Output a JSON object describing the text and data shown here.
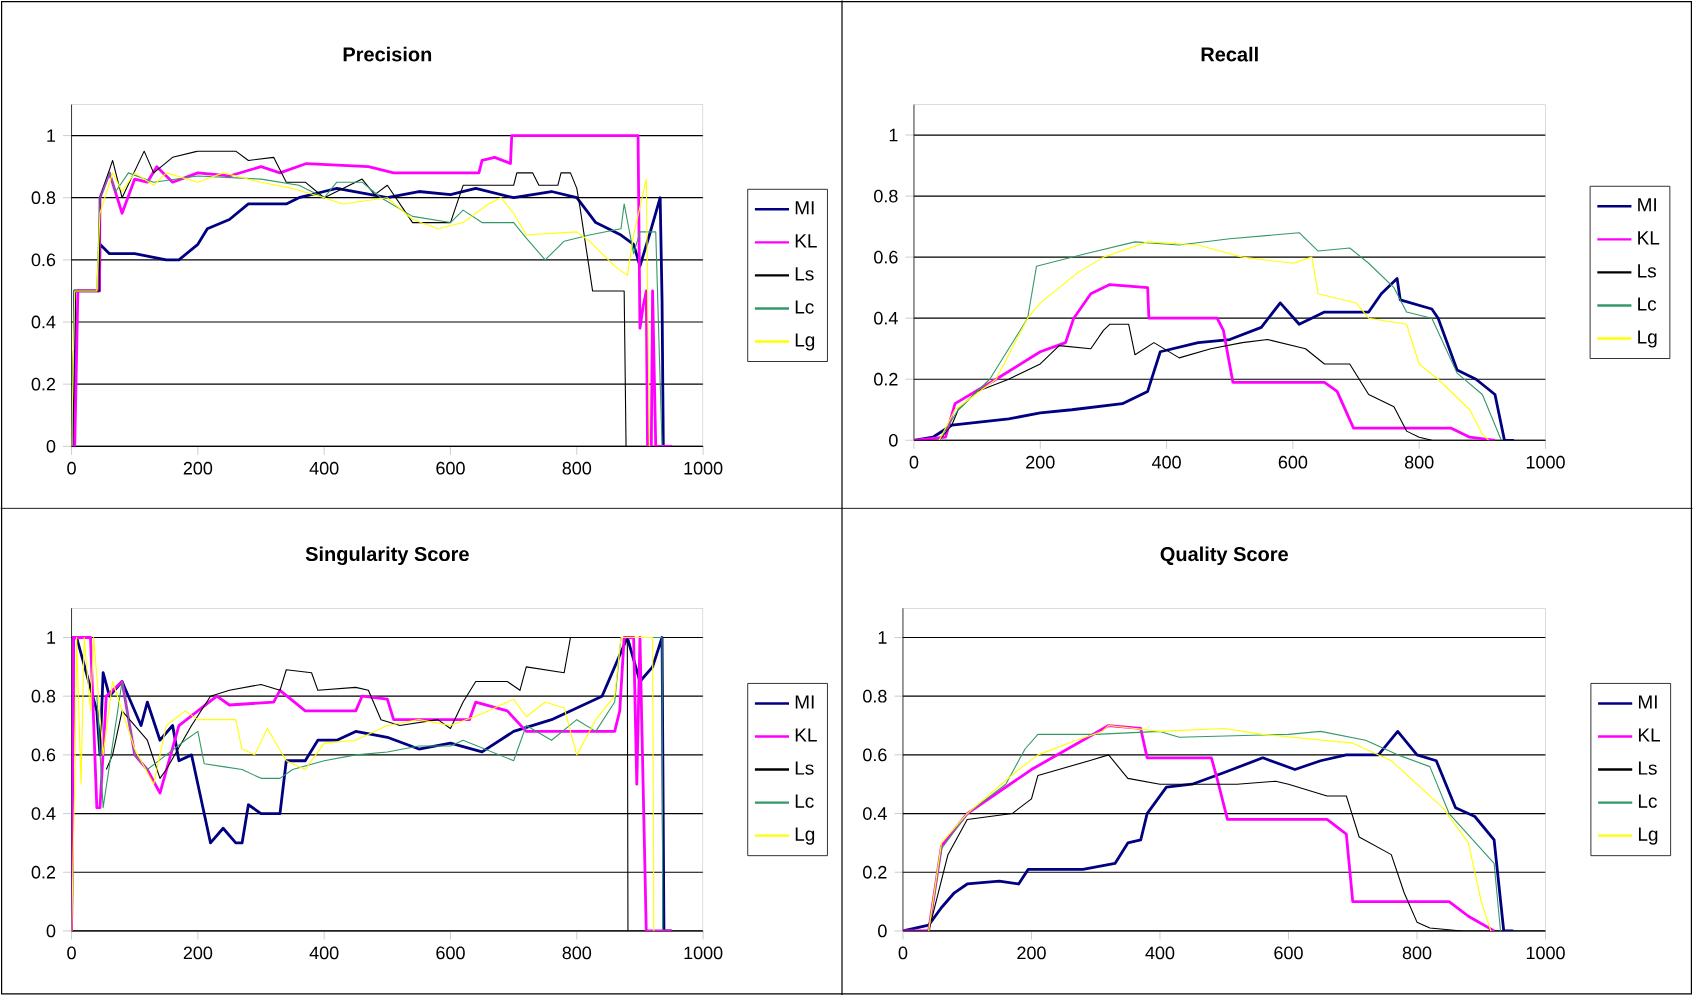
{
  "chart_data": [
    {
      "type": "line",
      "title": "Precision",
      "xlim": [
        0,
        1000
      ],
      "ylim": [
        0,
        1.1
      ],
      "xticks": [
        0,
        200,
        400,
        600,
        800,
        1000
      ],
      "yticks": [
        0,
        0.2,
        0.4,
        0.6,
        0.8,
        1
      ],
      "grid": "y",
      "legend": "right",
      "marker": "none",
      "line_style": "solid",
      "series": [
        {
          "name": "MI",
          "color": "#000080",
          "x": [
            0,
            4,
            5,
            44,
            45,
            60,
            100,
            150,
            170,
            200,
            215,
            250,
            280,
            340,
            360,
            400,
            420,
            500,
            550,
            600,
            640,
            700,
            760,
            800,
            830,
            850,
            870,
            890,
            900,
            915,
            932,
            935,
            937,
            950
          ],
          "values": [
            0,
            0,
            0.5,
            0.5,
            0.65,
            0.62,
            0.62,
            0.6,
            0.6,
            0.65,
            0.7,
            0.73,
            0.78,
            0.78,
            0.8,
            0.82,
            0.83,
            0.8,
            0.82,
            0.81,
            0.83,
            0.8,
            0.82,
            0.8,
            0.72,
            0.7,
            0.68,
            0.65,
            0.58,
            0.68,
            0.8,
            0.47,
            0,
            0
          ]
        },
        {
          "name": "KL",
          "color": "#ff00ff",
          "x": [
            0,
            5,
            10,
            44,
            45,
            60,
            80,
            100,
            120,
            135,
            160,
            200,
            250,
            300,
            330,
            372,
            470,
            510,
            645,
            650,
            670,
            695,
            697,
            897,
            900,
            905,
            910,
            912,
            918,
            920,
            925,
            950
          ],
          "values": [
            0,
            0,
            0.5,
            0.5,
            0.8,
            0.88,
            0.75,
            0.86,
            0.85,
            0.9,
            0.85,
            0.88,
            0.87,
            0.9,
            0.88,
            0.91,
            0.9,
            0.88,
            0.88,
            0.92,
            0.93,
            0.91,
            1,
            1,
            0.38,
            0.45,
            0.5,
            0,
            0,
            0.5,
            0,
            0
          ]
        },
        {
          "name": "Ls",
          "color": "#000000",
          "x": [
            0,
            5,
            44,
            45,
            65,
            80,
            115,
            130,
            160,
            200,
            260,
            280,
            320,
            340,
            370,
            400,
            420,
            460,
            480,
            500,
            540,
            600,
            620,
            700,
            705,
            730,
            740,
            770,
            775,
            790,
            800,
            805,
            825,
            875,
            878
          ],
          "values": [
            0,
            0.5,
            0.5,
            0.8,
            0.92,
            0.8,
            0.95,
            0.88,
            0.93,
            0.95,
            0.95,
            0.92,
            0.93,
            0.85,
            0.85,
            0.8,
            0.82,
            0.86,
            0.81,
            0.84,
            0.72,
            0.72,
            0.84,
            0.84,
            0.88,
            0.88,
            0.84,
            0.84,
            0.88,
            0.88,
            0.83,
            0.77,
            0.5,
            0.5,
            0
          ]
        },
        {
          "name": "Lc",
          "color": "#339966",
          "x": [
            0,
            5,
            40,
            45,
            60,
            70,
            90,
            130,
            200,
            300,
            360,
            400,
            420,
            460,
            490,
            540,
            600,
            620,
            650,
            700,
            720,
            750,
            780,
            820,
            870,
            875,
            890,
            900,
            925,
            935
          ],
          "values": [
            0,
            0.5,
            0.5,
            0.8,
            0.88,
            0.82,
            0.88,
            0.85,
            0.87,
            0.86,
            0.84,
            0.8,
            0.85,
            0.85,
            0.8,
            0.74,
            0.72,
            0.76,
            0.72,
            0.72,
            0.67,
            0.6,
            0.66,
            0.68,
            0.7,
            0.78,
            0.62,
            0.69,
            0.69,
            0
          ]
        },
        {
          "name": "Lg",
          "color": "#ffff00",
          "x": [
            0,
            5,
            40,
            45,
            65,
            80,
            100,
            130,
            150,
            200,
            240,
            300,
            350,
            400,
            430,
            500,
            540,
            580,
            620,
            660,
            680,
            700,
            720,
            800,
            820,
            860,
            880,
            890,
            910,
            915
          ],
          "values": [
            0,
            0.5,
            0.5,
            0.75,
            0.88,
            0.82,
            0.88,
            0.84,
            0.88,
            0.85,
            0.88,
            0.85,
            0.83,
            0.8,
            0.78,
            0.8,
            0.73,
            0.7,
            0.72,
            0.78,
            0.8,
            0.75,
            0.68,
            0.69,
            0.66,
            0.58,
            0.55,
            0.68,
            0.86,
            0
          ]
        }
      ]
    },
    {
      "type": "line",
      "title": "Recall",
      "xlim": [
        0,
        1000
      ],
      "ylim": [
        0,
        1.1
      ],
      "xticks": [
        0,
        200,
        400,
        600,
        800,
        1000
      ],
      "yticks": [
        0,
        0.2,
        0.4,
        0.6,
        0.8,
        1
      ],
      "grid": "y",
      "legend": "right",
      "marker": "none",
      "line_style": "solid",
      "series": [
        {
          "name": "MI",
          "color": "#000080",
          "x": [
            0,
            30,
            60,
            150,
            200,
            250,
            330,
            370,
            390,
            450,
            500,
            550,
            580,
            610,
            650,
            720,
            740,
            765,
            770,
            820,
            830,
            860,
            890,
            920,
            935,
            950
          ],
          "values": [
            0,
            0.01,
            0.05,
            0.07,
            0.09,
            0.1,
            0.12,
            0.16,
            0.29,
            0.32,
            0.33,
            0.37,
            0.45,
            0.38,
            0.42,
            0.42,
            0.48,
            0.53,
            0.46,
            0.43,
            0.4,
            0.23,
            0.2,
            0.15,
            0,
            0
          ]
        },
        {
          "name": "KL",
          "color": "#ff00ff",
          "x": [
            0,
            50,
            65,
            130,
            200,
            240,
            253,
            280,
            310,
            370,
            372,
            480,
            490,
            505,
            650,
            670,
            696,
            850,
            880,
            920
          ],
          "values": [
            0,
            0.01,
            0.12,
            0.2,
            0.29,
            0.32,
            0.4,
            0.48,
            0.51,
            0.5,
            0.4,
            0.4,
            0.36,
            0.19,
            0.19,
            0.16,
            0.04,
            0.04,
            0.01,
            0
          ]
        },
        {
          "name": "Ls",
          "color": "#000000",
          "x": [
            0,
            40,
            60,
            70,
            100,
            150,
            200,
            230,
            280,
            300,
            310,
            340,
            350,
            380,
            420,
            470,
            520,
            560,
            620,
            650,
            690,
            720,
            760,
            780,
            800,
            820
          ],
          "values": [
            0,
            0,
            0.05,
            0.1,
            0.16,
            0.2,
            0.25,
            0.31,
            0.3,
            0.36,
            0.38,
            0.38,
            0.28,
            0.32,
            0.27,
            0.3,
            0.32,
            0.33,
            0.3,
            0.25,
            0.25,
            0.15,
            0.11,
            0.03,
            0.01,
            0
          ]
        },
        {
          "name": "Lc",
          "color": "#339966",
          "x": [
            40,
            70,
            120,
            150,
            180,
            194,
            270,
            350,
            420,
            500,
            610,
            640,
            690,
            720,
            760,
            780,
            820,
            860,
            900,
            930
          ],
          "values": [
            0,
            0.1,
            0.2,
            0.3,
            0.4,
            0.57,
            0.61,
            0.65,
            0.64,
            0.66,
            0.68,
            0.62,
            0.63,
            0.58,
            0.5,
            0.42,
            0.4,
            0.22,
            0.15,
            0
          ]
        },
        {
          "name": "Lg",
          "color": "#ffff00",
          "x": [
            40,
            65,
            130,
            180,
            200,
            260,
            300,
            370,
            450,
            520,
            600,
            630,
            640,
            700,
            720,
            780,
            800,
            830,
            880,
            900,
            910
          ],
          "values": [
            0,
            0.1,
            0.2,
            0.4,
            0.45,
            0.55,
            0.6,
            0.65,
            0.64,
            0.6,
            0.58,
            0.6,
            0.48,
            0.45,
            0.4,
            0.38,
            0.25,
            0.2,
            0.1,
            0.02,
            0
          ]
        }
      ]
    },
    {
      "type": "line",
      "title": "Singularity Score",
      "xlim": [
        0,
        1000
      ],
      "ylim": [
        0,
        1.1
      ],
      "xticks": [
        0,
        200,
        400,
        600,
        800,
        1000
      ],
      "yticks": [
        0,
        0.2,
        0.4,
        0.6,
        0.8,
        1
      ],
      "grid": "y",
      "legend": "right",
      "marker": "none",
      "line_style": "solid",
      "series": [
        {
          "name": "MI",
          "color": "#000080",
          "x": [
            0,
            3,
            8,
            40,
            45,
            50,
            60,
            80,
            90,
            110,
            120,
            140,
            160,
            170,
            190,
            200,
            210,
            220,
            240,
            260,
            270,
            280,
            300,
            330,
            340,
            370,
            390,
            420,
            450,
            500,
            550,
            600,
            650,
            700,
            760,
            840,
            860,
            880,
            900,
            920,
            935,
            938,
            950
          ],
          "values": [
            0,
            1,
            1,
            0.75,
            0.6,
            0.88,
            0.8,
            0.85,
            0.8,
            0.7,
            0.78,
            0.65,
            0.7,
            0.58,
            0.6,
            0.5,
            0.4,
            0.3,
            0.35,
            0.3,
            0.3,
            0.43,
            0.4,
            0.4,
            0.58,
            0.58,
            0.65,
            0.65,
            0.68,
            0.66,
            0.62,
            0.64,
            0.61,
            0.68,
            0.72,
            0.8,
            0.9,
            1,
            0.85,
            0.9,
            1,
            0,
            0
          ]
        },
        {
          "name": "KL",
          "color": "#ff00ff",
          "x": [
            0,
            3,
            30,
            40,
            45,
            55,
            80,
            100,
            120,
            140,
            170,
            230,
            250,
            320,
            330,
            370,
            450,
            460,
            500,
            510,
            630,
            640,
            690,
            720,
            860,
            868,
            875,
            890,
            895,
            900,
            910,
            950
          ],
          "values": [
            0,
            1,
            1,
            0.42,
            0.42,
            0.8,
            0.85,
            0.6,
            0.55,
            0.47,
            0.7,
            0.8,
            0.77,
            0.78,
            0.82,
            0.75,
            0.75,
            0.8,
            0.79,
            0.72,
            0.72,
            0.78,
            0.75,
            0.68,
            0.68,
            0.75,
            1,
            1,
            0.5,
            1,
            0,
            0
          ]
        },
        {
          "name": "Ls",
          "color": "#000000",
          "x": [
            55,
            65,
            80,
            100,
            120,
            140,
            150,
            190,
            220,
            250,
            300,
            330,
            340,
            380,
            390,
            450,
            470,
            490,
            520,
            580,
            600,
            620,
            640,
            690,
            710,
            720,
            780,
            790,
            880,
            881
          ],
          "values": [
            0.55,
            0.6,
            0.75,
            0.7,
            0.65,
            0.52,
            0.55,
            0.7,
            0.8,
            0.82,
            0.84,
            0.82,
            0.89,
            0.88,
            0.82,
            0.83,
            0.82,
            0.72,
            0.7,
            0.72,
            0.69,
            0.78,
            0.85,
            0.85,
            0.82,
            0.9,
            0.88,
            1,
            1,
            0
          ]
        },
        {
          "name": "Lc",
          "color": "#339966",
          "x": [
            40,
            50,
            80,
            100,
            120,
            150,
            180,
            200,
            210,
            240,
            270,
            300,
            330,
            350,
            400,
            450,
            500,
            550,
            600,
            620,
            700,
            720,
            760,
            800,
            830,
            860,
            870,
            935,
            936
          ],
          "values": [
            0.8,
            0.42,
            0.85,
            0.6,
            0.55,
            0.6,
            0.65,
            0.68,
            0.57,
            0.56,
            0.55,
            0.52,
            0.52,
            0.55,
            0.58,
            0.6,
            0.61,
            0.63,
            0.63,
            0.65,
            0.58,
            0.7,
            0.65,
            0.72,
            0.68,
            0.78,
            1,
            1,
            0
          ]
        },
        {
          "name": "Lg",
          "color": "#ffff00",
          "x": [
            0,
            5,
            8,
            15,
            20,
            30,
            35,
            50,
            65,
            100,
            130,
            150,
            180,
            200,
            260,
            270,
            290,
            310,
            340,
            370,
            400,
            450,
            500,
            550,
            600,
            650,
            700,
            720,
            750,
            780,
            800,
            830,
            860,
            870,
            920,
            922
          ],
          "values": [
            0,
            0.5,
            1,
            0.5,
            1,
            0.75,
            1,
            0.6,
            0.85,
            0.62,
            0.5,
            0.7,
            0.75,
            0.72,
            0.72,
            0.62,
            0.6,
            0.69,
            0.58,
            0.55,
            0.64,
            0.65,
            0.7,
            0.72,
            0.7,
            0.74,
            0.79,
            0.73,
            0.78,
            0.76,
            0.6,
            0.72,
            0.8,
            1,
            1,
            0
          ]
        }
      ]
    },
    {
      "type": "line",
      "title": "Quality Score",
      "xlim": [
        0,
        1000
      ],
      "ylim": [
        0,
        1.1
      ],
      "xticks": [
        0,
        200,
        400,
        600,
        800,
        1000
      ],
      "yticks": [
        0,
        0.2,
        0.4,
        0.6,
        0.8,
        1
      ],
      "grid": "y",
      "legend": "right",
      "marker": "none",
      "line_style": "solid",
      "series": [
        {
          "name": "MI",
          "color": "#000080",
          "x": [
            0,
            40,
            60,
            80,
            100,
            150,
            180,
            195,
            280,
            330,
            350,
            370,
            380,
            410,
            450,
            500,
            560,
            610,
            650,
            690,
            740,
            770,
            800,
            830,
            860,
            890,
            920,
            935,
            950
          ],
          "values": [
            0,
            0.02,
            0.08,
            0.13,
            0.16,
            0.17,
            0.16,
            0.21,
            0.21,
            0.23,
            0.3,
            0.31,
            0.4,
            0.49,
            0.5,
            0.54,
            0.59,
            0.55,
            0.58,
            0.6,
            0.6,
            0.68,
            0.6,
            0.58,
            0.42,
            0.39,
            0.31,
            0,
            0
          ]
        },
        {
          "name": "KL",
          "color": "#ff00ff",
          "x": [
            0,
            40,
            60,
            100,
            200,
            280,
            320,
            370,
            380,
            480,
            490,
            505,
            660,
            690,
            700,
            850,
            880,
            920
          ],
          "values": [
            0,
            0,
            0.29,
            0.4,
            0.55,
            0.65,
            0.7,
            0.69,
            0.59,
            0.59,
            0.51,
            0.38,
            0.38,
            0.33,
            0.1,
            0.1,
            0.05,
            0
          ]
        },
        {
          "name": "Ls",
          "color": "#000000",
          "x": [
            0,
            40,
            70,
            100,
            170,
            200,
            210,
            290,
            320,
            350,
            400,
            520,
            580,
            600,
            660,
            690,
            710,
            760,
            780,
            800,
            820,
            870
          ],
          "values": [
            0,
            0,
            0.26,
            0.38,
            0.4,
            0.45,
            0.53,
            0.58,
            0.6,
            0.52,
            0.5,
            0.5,
            0.51,
            0.5,
            0.46,
            0.46,
            0.32,
            0.26,
            0.13,
            0.03,
            0.01,
            0
          ]
        },
        {
          "name": "Lc",
          "color": "#339966",
          "x": [
            40,
            60,
            100,
            160,
            190,
            210,
            300,
            400,
            430,
            600,
            650,
            720,
            770,
            820,
            850,
            920,
            930
          ],
          "values": [
            0,
            0.28,
            0.4,
            0.5,
            0.62,
            0.67,
            0.67,
            0.68,
            0.66,
            0.67,
            0.68,
            0.65,
            0.6,
            0.56,
            0.4,
            0.23,
            0
          ]
        },
        {
          "name": "Lg",
          "color": "#ffff00",
          "x": [
            40,
            60,
            100,
            180,
            210,
            270,
            310,
            320,
            400,
            500,
            560,
            700,
            760,
            800,
            840,
            880,
            900,
            915
          ],
          "values": [
            0,
            0.3,
            0.4,
            0.55,
            0.6,
            0.65,
            0.68,
            0.7,
            0.68,
            0.69,
            0.67,
            0.64,
            0.58,
            0.5,
            0.42,
            0.3,
            0.1,
            0
          ]
        }
      ]
    }
  ]
}
